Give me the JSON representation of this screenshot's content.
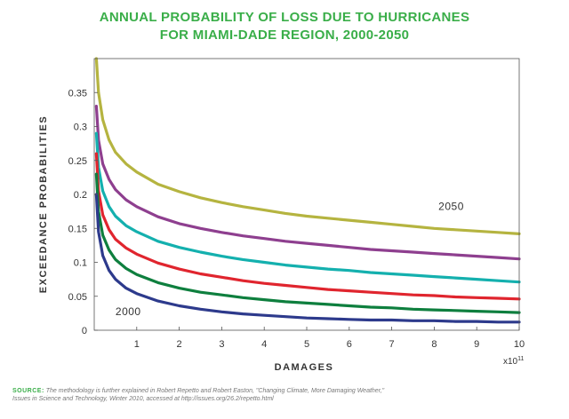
{
  "chart_data": {
    "type": "line",
    "title": "ANNUAL PROBABILITY OF LOSS DUE TO HURRICANES",
    "subtitle": "FOR MIAMI-DADE REGION, 2000-2050",
    "xlabel": "DAMAGES",
    "ylabel": "EXCEEDANCE PROBABILITIES",
    "x_multiplier_label": "x10",
    "x_multiplier_exp": "11",
    "xlim": [
      0,
      10
    ],
    "ylim": [
      0,
      0.4
    ],
    "xticks": [
      "1",
      "2",
      "3",
      "4",
      "5",
      "6",
      "7",
      "8",
      "9",
      "10"
    ],
    "yticks": [
      "0",
      "0.05",
      "0.1",
      "0.15",
      "0.2",
      "0.25",
      "0.3",
      "0.35"
    ],
    "grid": false,
    "x": [
      0.05,
      0.1,
      0.2,
      0.35,
      0.5,
      0.75,
      1,
      1.5,
      2,
      2.5,
      3,
      3.5,
      4,
      4.5,
      5,
      5.5,
      6,
      6.5,
      7,
      7.5,
      8,
      8.5,
      9,
      9.5,
      10
    ],
    "series": [
      {
        "color": "#b5b440",
        "values": [
          0.4,
          0.35,
          0.31,
          0.28,
          0.262,
          0.245,
          0.233,
          0.215,
          0.204,
          0.195,
          0.188,
          0.182,
          0.177,
          0.172,
          0.168,
          0.165,
          0.162,
          0.159,
          0.156,
          0.153,
          0.15,
          0.148,
          0.146,
          0.144,
          0.142
        ]
      },
      {
        "color": "#8e3f8f",
        "values": [
          0.33,
          0.28,
          0.245,
          0.222,
          0.207,
          0.192,
          0.182,
          0.167,
          0.157,
          0.15,
          0.144,
          0.139,
          0.135,
          0.131,
          0.128,
          0.125,
          0.122,
          0.119,
          0.117,
          0.115,
          0.113,
          0.111,
          0.109,
          0.107,
          0.105
        ]
      },
      {
        "color": "#14b0ae",
        "values": [
          0.29,
          0.24,
          0.205,
          0.182,
          0.168,
          0.154,
          0.145,
          0.131,
          0.122,
          0.115,
          0.109,
          0.104,
          0.1,
          0.096,
          0.093,
          0.09,
          0.088,
          0.085,
          0.083,
          0.081,
          0.079,
          0.077,
          0.075,
          0.073,
          0.071
        ]
      },
      {
        "color": "#e0252e",
        "values": [
          0.26,
          0.205,
          0.17,
          0.148,
          0.134,
          0.121,
          0.112,
          0.099,
          0.09,
          0.083,
          0.078,
          0.073,
          0.069,
          0.066,
          0.063,
          0.06,
          0.058,
          0.056,
          0.054,
          0.052,
          0.051,
          0.049,
          0.048,
          0.047,
          0.046
        ]
      },
      {
        "color": "#0e7f3e",
        "values": [
          0.23,
          0.175,
          0.14,
          0.118,
          0.104,
          0.091,
          0.082,
          0.07,
          0.062,
          0.056,
          0.052,
          0.048,
          0.045,
          0.042,
          0.04,
          0.038,
          0.036,
          0.034,
          0.033,
          0.031,
          0.03,
          0.029,
          0.028,
          0.027,
          0.026
        ]
      },
      {
        "color": "#2d3a8c",
        "values": [
          0.2,
          0.145,
          0.11,
          0.088,
          0.075,
          0.062,
          0.054,
          0.043,
          0.036,
          0.031,
          0.027,
          0.024,
          0.022,
          0.02,
          0.018,
          0.017,
          0.016,
          0.015,
          0.015,
          0.014,
          0.014,
          0.013,
          0.013,
          0.012,
          0.012
        ]
      }
    ],
    "annotations": [
      {
        "text": "2050",
        "x": 8.1,
        "y": 0.177
      },
      {
        "text": "2000",
        "x": 0.5,
        "y": 0.022
      }
    ]
  },
  "source": {
    "label": "SOURCE:",
    "text_line1": "The methodology is further explained in Robert Repetto and Robert Easton, \"Changing Climate, More Damaging Weather,\"",
    "text_line2": "Issues in Science and Technology, Winter 2010, accessed at http://issues.org/26.2/repetto.html"
  }
}
